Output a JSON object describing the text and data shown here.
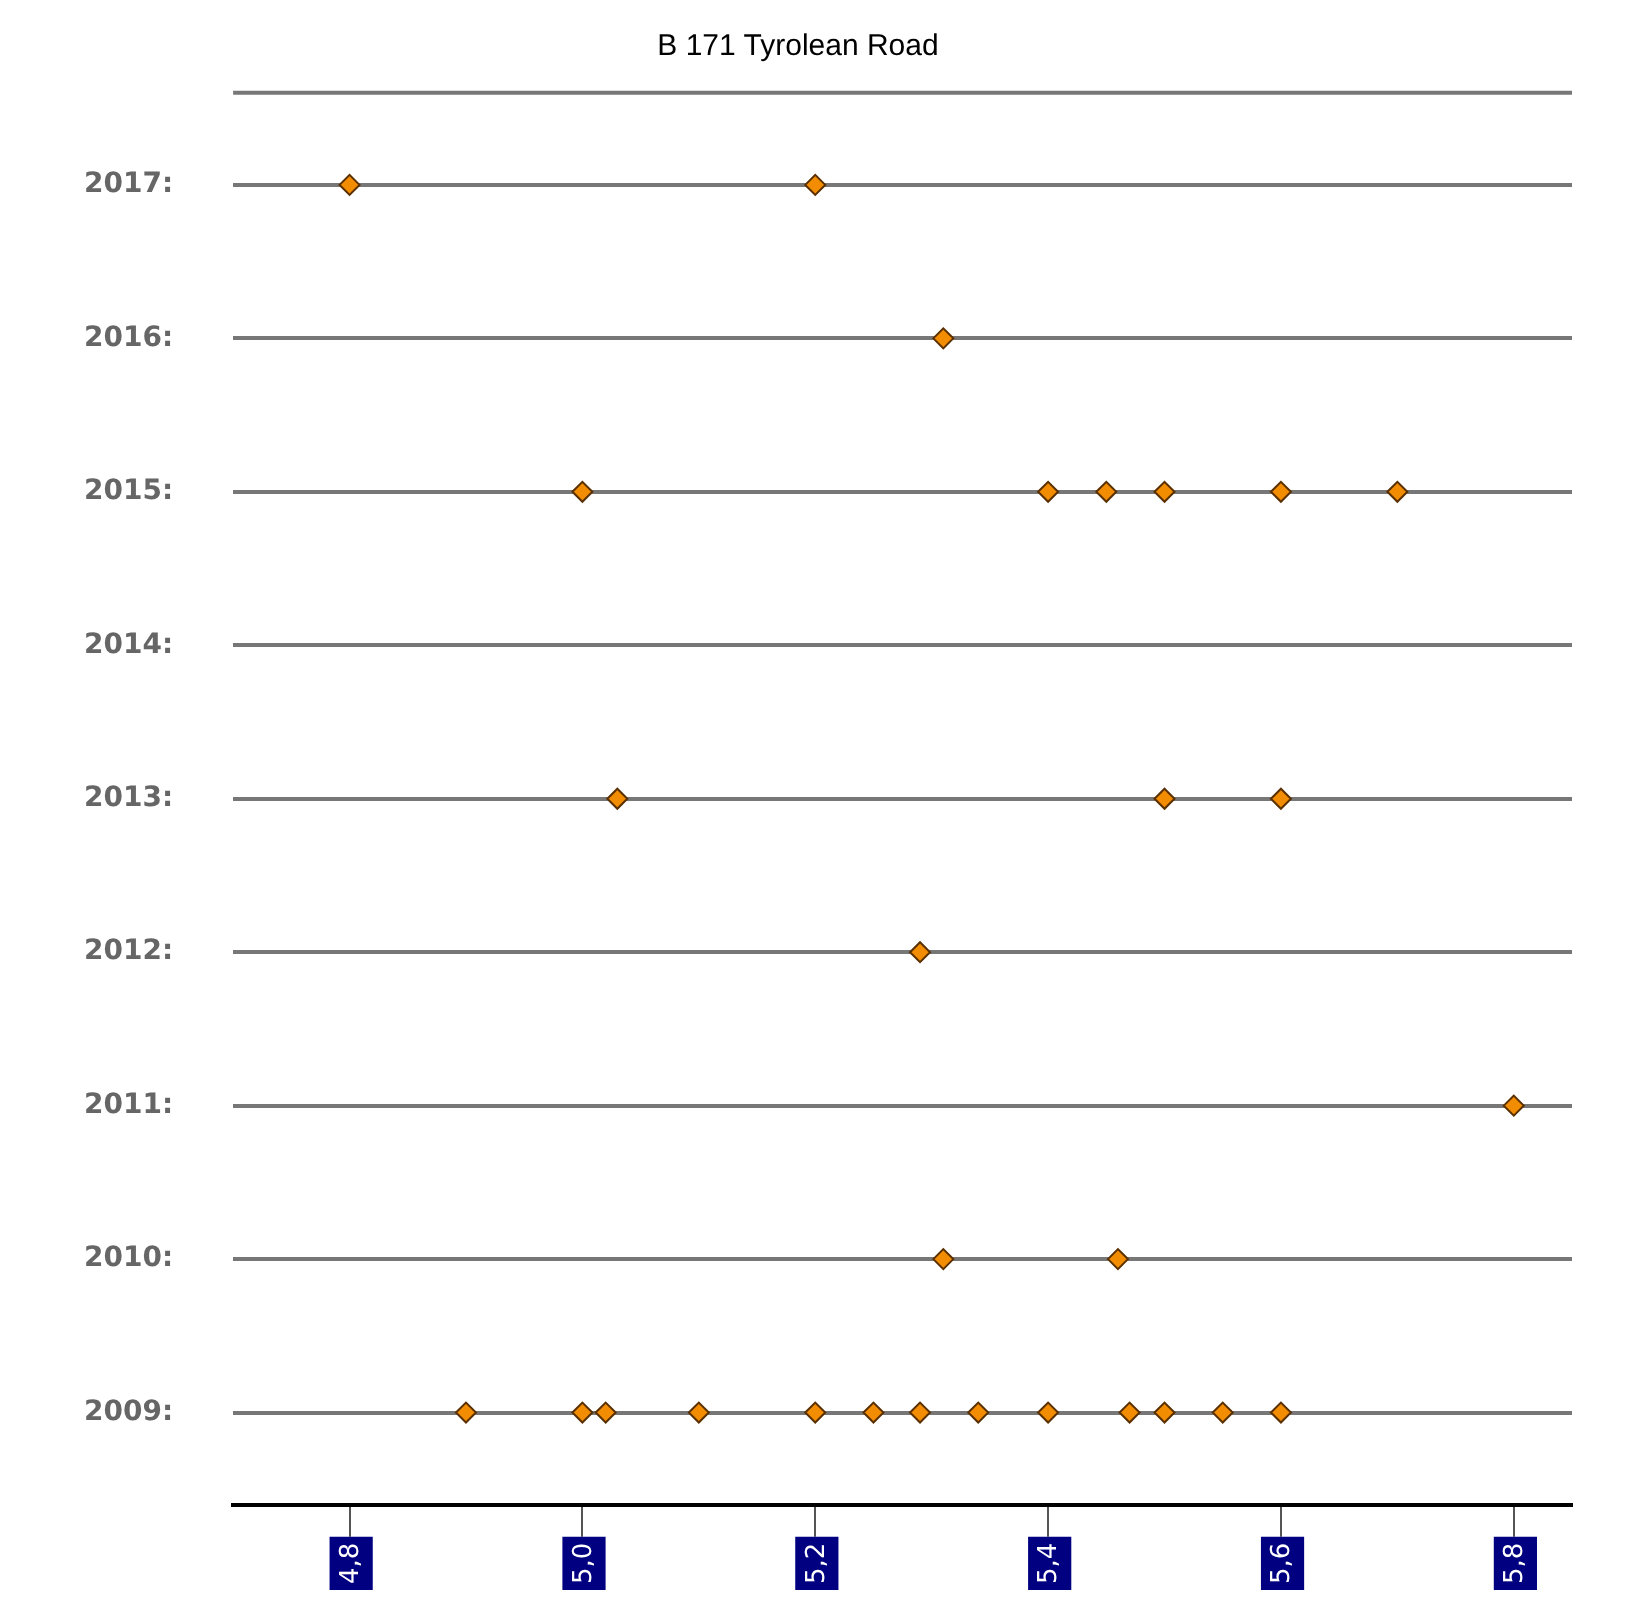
{
  "chart_data": {
    "type": "scatter",
    "title": "B 171 Tyrolean Road",
    "marker": "diamond",
    "grid": "y",
    "series": [
      {
        "color": "#f28c00",
        "x": [
          4.8,
          5.2,
          5.31,
          5.0,
          5.4,
          5.45,
          5.5,
          5.6,
          5.7,
          5.03,
          5.5,
          5.6,
          5.29,
          5.8,
          5.31,
          5.46,
          4.9,
          5.0,
          5.02,
          5.1,
          5.2,
          5.25,
          5.29,
          5.34,
          5.4,
          5.47,
          5.5,
          5.55,
          5.6
        ],
        "values": [
          2017,
          2017,
          2016,
          2015,
          2015,
          2015,
          2015,
          2015,
          2015,
          2013,
          2013,
          2013,
          2012,
          2011,
          2010,
          2010,
          2009,
          2009,
          2009,
          2009,
          2009,
          2009,
          2009,
          2009,
          2009,
          2009,
          2009,
          2009,
          2009
        ]
      }
    ],
    "xlim": [
      4.7,
      5.85
    ],
    "xticks": [
      {
        "value": 4.8,
        "label": "4,8"
      },
      {
        "value": 5.0,
        "label": "5,0"
      },
      {
        "value": 5.2,
        "label": "5,2"
      },
      {
        "value": 5.4,
        "label": "5,4"
      },
      {
        "value": 5.6,
        "label": "5,6"
      },
      {
        "value": 5.8,
        "label": "5,8"
      }
    ],
    "ylim": [
      2008.4,
      2017.6
    ],
    "yticks": [
      {
        "value": 2009,
        "label": "2009:"
      },
      {
        "value": 2010,
        "label": "2010:"
      },
      {
        "value": 2011,
        "label": "2011:"
      },
      {
        "value": 2012,
        "label": "2012:"
      },
      {
        "value": 2013,
        "label": "2013:"
      },
      {
        "value": 2014,
        "label": "2014:"
      },
      {
        "value": 2015,
        "label": "2015:"
      },
      {
        "value": 2016,
        "label": "2016:"
      },
      {
        "value": 2017,
        "label": "2017:"
      }
    ]
  }
}
